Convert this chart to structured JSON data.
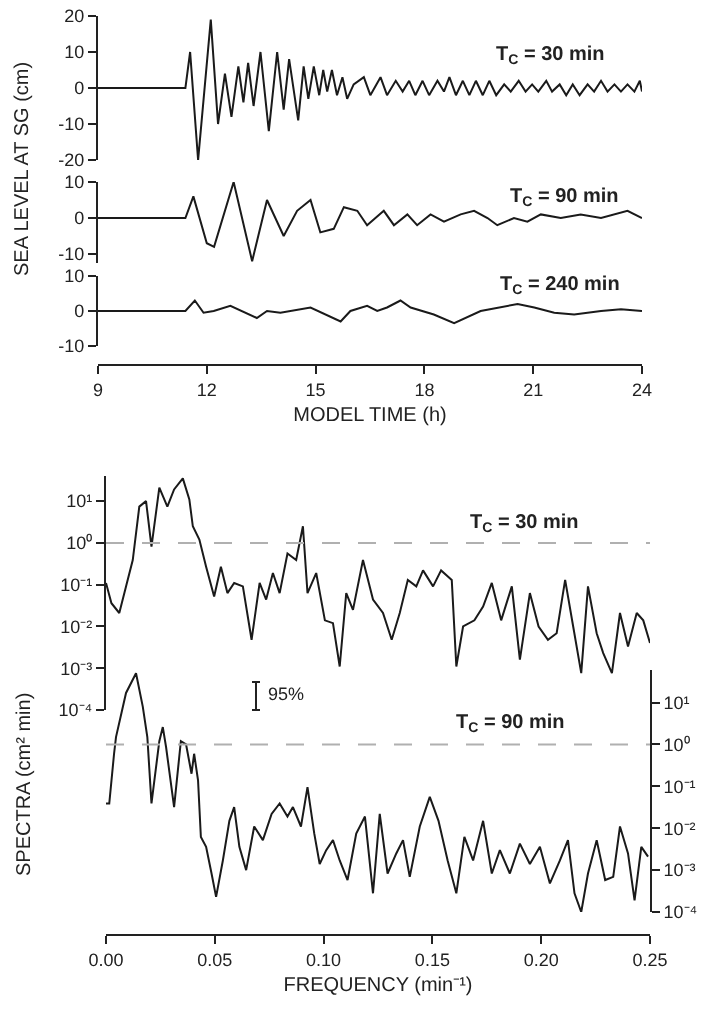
{
  "chart_data": [
    {
      "type": "line",
      "tick_labels": "y",
      "xlim": [
        9,
        24
      ],
      "ylim": [
        -20,
        20
      ],
      "yticks": [
        -20,
        -10,
        0,
        10,
        20
      ],
      "annotations": [
        "T$_{C}$ = 30 min"
      ],
      "series": [
        {
          "color": "#1a1a1a",
          "x": [
            9,
            11.41,
            11.54,
            11.76,
            12.11,
            12.31,
            12.5,
            12.68,
            12.87,
            13.01,
            13.14,
            13.29,
            13.48,
            13.71,
            13.94,
            14.12,
            14.27,
            14.52,
            14.67,
            14.8,
            14.95,
            15.1,
            15.21,
            15.32,
            15.45,
            15.59,
            15.74,
            15.87,
            16.05,
            16.33,
            16.51,
            16.79,
            16.97,
            17.21,
            17.4,
            17.58,
            17.75,
            17.95,
            18.13,
            18.36,
            18.54,
            18.69,
            18.87,
            19.06,
            19.24,
            19.42,
            19.61,
            19.79,
            19.98,
            20.2,
            20.38,
            20.6,
            20.79,
            20.97,
            21.14,
            21.36,
            21.52,
            21.73,
            21.91,
            22.09,
            22.28,
            22.5,
            22.68,
            22.87,
            23.05,
            23.24,
            23.42,
            23.6,
            23.79,
            23.94,
            24
          ],
          "values": [
            0,
            0,
            10,
            -20,
            19,
            -10,
            4,
            -8,
            6,
            -4,
            7,
            -5,
            10,
            -12,
            10,
            -6,
            8,
            -9,
            6,
            -3,
            6,
            -2,
            5,
            -1,
            5,
            -2,
            3,
            -3,
            1,
            3,
            -2,
            3,
            -2,
            2,
            -1,
            2,
            -2,
            2,
            -2,
            2,
            -1,
            3,
            -2,
            2,
            -2,
            2,
            -2,
            2,
            -2,
            1,
            -1,
            2,
            -1,
            1,
            -1,
            2,
            -1,
            1,
            -2,
            1,
            -2,
            1,
            -1,
            2,
            -1,
            1,
            -1,
            1,
            -1,
            2,
            -1
          ]
        }
      ]
    },
    {
      "type": "line",
      "tick_labels": "y",
      "xlim": [
        9,
        24
      ],
      "ylim": [
        -12.5,
        10
      ],
      "yticks": [
        -10,
        0,
        10
      ],
      "ylabel": "SEA LEVEL AT SG (cm)",
      "annotations": [
        "T$_{C}$ = 90 min"
      ],
      "series": [
        {
          "color": "#1a1a1a",
          "x": [
            9,
            11.41,
            11.63,
            12.0,
            12.2,
            12.74,
            13.25,
            13.66,
            14.12,
            14.49,
            14.86,
            15.13,
            15.5,
            15.78,
            16.15,
            16.42,
            16.88,
            17.16,
            17.53,
            17.8,
            18.17,
            18.54,
            19.0,
            19.37,
            19.74,
            20.01,
            20.47,
            20.84,
            21.21,
            21.76,
            22.31,
            22.87,
            23.6,
            24
          ],
          "values": [
            0,
            0,
            6,
            -7,
            -8,
            10,
            -12,
            5,
            -5,
            2,
            5,
            -4,
            -3,
            3,
            2,
            -2,
            2,
            -2,
            1,
            -2,
            1,
            -1,
            1,
            2,
            0,
            -2,
            0,
            -1,
            1,
            0,
            1,
            0,
            2,
            0
          ]
        }
      ]
    },
    {
      "type": "line",
      "xlim": [
        9,
        24
      ],
      "xticks": [
        9,
        12,
        15,
        18,
        21,
        24
      ],
      "xlabel": "MODEL TIME (h)",
      "ylim": [
        -10,
        10
      ],
      "yticks": [
        -10,
        0,
        10
      ],
      "annotations": [
        "T$_{C}$ = 240 min"
      ],
      "series": [
        {
          "color": "#1a1a1a",
          "x": [
            9,
            11.41,
            11.67,
            11.91,
            12.19,
            12.65,
            13.38,
            13.66,
            14.03,
            14.86,
            15.69,
            15.96,
            16.42,
            16.7,
            16.97,
            17.34,
            17.62,
            18.26,
            18.82,
            19.55,
            20.57,
            21.03,
            21.58,
            22.13,
            22.87,
            23.42,
            24
          ],
          "values": [
            0,
            0,
            3,
            -0.5,
            0,
            1.5,
            -2,
            0,
            -0.5,
            1,
            -3,
            0,
            1.5,
            0,
            1,
            3,
            1,
            -1,
            -3.5,
            0,
            2,
            1,
            -0.5,
            -1,
            0,
            0.5,
            0
          ]
        }
      ]
    },
    {
      "type": "line",
      "log": true,
      "tick_labels": "y",
      "xlim": [
        0,
        0.25
      ],
      "ylim": [
        0.0001,
        40
      ],
      "yticks": [
        {
          "value": 0.0001,
          "label": "10⁻⁴"
        },
        {
          "value": 0.001,
          "label": "10⁻³"
        },
        {
          "value": 0.01,
          "label": "10⁻²"
        },
        {
          "value": 0.1,
          "label": "10⁻¹"
        },
        {
          "value": 1,
          "label": "10⁰"
        },
        {
          "value": 10,
          "label": "10¹"
        }
      ],
      "ylabel": "SPECTRA (cm² min)",
      "annotations": [
        "T$_{C}$ = 30 min",
        "95%"
      ],
      "ref_lines": [
        {
          "axis": "y",
          "value": 1,
          "color": "#b0b0b0",
          "line_style": "dashed"
        }
      ],
      "series": [
        {
          "color": "#1a1a1a",
          "x": [
            0,
            0.0025,
            0.0061,
            0.0092,
            0.0123,
            0.0153,
            0.0184,
            0.0209,
            0.0245,
            0.0282,
            0.0313,
            0.0353,
            0.0383,
            0.0399,
            0.0429,
            0.046,
            0.0497,
            0.0528,
            0.0558,
            0.0589,
            0.0629,
            0.0669,
            0.0706,
            0.0736,
            0.0767,
            0.0798,
            0.0834,
            0.0874,
            0.0905,
            0.0926,
            0.0966,
            0.1006,
            0.1043,
            0.1074,
            0.1104,
            0.1135,
            0.1181,
            0.1227,
            0.1273,
            0.1313,
            0.135,
            0.1387,
            0.1426,
            0.1457,
            0.1503,
            0.154,
            0.1589,
            0.161,
            0.1641,
            0.1693,
            0.1733,
            0.1773,
            0.1816,
            0.1865,
            0.1902,
            0.1948,
            0.1988,
            0.2031,
            0.2071,
            0.211,
            0.2147,
            0.2184,
            0.2215,
            0.2255,
            0.2285,
            0.2325,
            0.2362,
            0.2399,
            0.2439,
            0.2469,
            0.25
          ],
          "values": [
            0.11,
            0.036,
            0.021,
            0.091,
            0.39,
            7.4,
            10,
            0.81,
            21,
            7.4,
            19,
            35,
            11,
            2.5,
            1.2,
            0.27,
            0.052,
            0.27,
            0.063,
            0.11,
            0.091,
            0.0048,
            0.11,
            0.044,
            0.19,
            0.063,
            0.56,
            0.39,
            2.5,
            0.063,
            0.19,
            0.014,
            0.012,
            0.0011,
            0.063,
            0.025,
            0.39,
            0.044,
            0.021,
            0.0048,
            0.021,
            0.13,
            0.091,
            0.22,
            0.091,
            0.22,
            0.13,
            0.0011,
            0.01,
            0.014,
            0.03,
            0.11,
            0.014,
            0.091,
            0.0016,
            0.063,
            0.01,
            0.0048,
            0.0069,
            0.13,
            0.01,
            0.00076,
            0.091,
            0.0069,
            0.0023,
            0.00076,
            0.021,
            0.0033,
            0.021,
            0.014,
            0.004
          ]
        }
      ]
    },
    {
      "type": "line",
      "log": "y2",
      "xlim": [
        0,
        0.25
      ],
      "xticks": [
        {
          "value": 0,
          "label": "0.00"
        },
        {
          "value": 0.05,
          "label": "0.05"
        },
        {
          "value": 0.1,
          "label": "0.10"
        },
        {
          "value": 0.15,
          "label": "0.15"
        },
        {
          "value": 0.2,
          "label": "0.20"
        },
        {
          "value": 0.25,
          "label": "0.25"
        }
      ],
      "xlabel": "FREQUENCY (min⁻¹)",
      "y2lim": [
        0.0001,
        60
      ],
      "y2ticks": [
        {
          "value": 0.0001,
          "label": "10⁻⁴"
        },
        {
          "value": 0.001,
          "label": "10⁻³"
        },
        {
          "value": 0.01,
          "label": "10⁻²"
        },
        {
          "value": 0.1,
          "label": "10⁻¹"
        },
        {
          "value": 1,
          "label": "10⁰"
        },
        {
          "value": 10,
          "label": "10¹"
        }
      ],
      "annotations": [
        "T$_{C}$ = 90 min"
      ],
      "ref_lines": [
        {
          "axis": "y2",
          "value": 1,
          "color": "#b0b0b0",
          "line_style": "dashed"
        }
      ],
      "series": [
        {
          "color": "#1a1a1a",
          "axis": "y2",
          "x": [
            0,
            0.0015,
            0.0037,
            0.0046,
            0.0092,
            0.0138,
            0.0169,
            0.019,
            0.0209,
            0.0245,
            0.0261,
            0.0276,
            0.0313,
            0.0344,
            0.0368,
            0.0393,
            0.0405,
            0.0423,
            0.0436,
            0.046,
            0.0485,
            0.0506,
            0.0537,
            0.0567,
            0.0589,
            0.0613,
            0.0644,
            0.0681,
            0.0721,
            0.0761,
            0.0798,
            0.0834,
            0.0859,
            0.0896,
            0.0926,
            0.0957,
            0.0982,
            0.1012,
            0.1043,
            0.1074,
            0.111,
            0.115,
            0.119,
            0.1227,
            0.1258,
            0.1294,
            0.1334,
            0.1365,
            0.1396,
            0.1442,
            0.1488,
            0.1528,
            0.157,
            0.161,
            0.1647,
            0.1687,
            0.1733,
            0.1773,
            0.181,
            0.1856,
            0.1902,
            0.1948,
            0.1994,
            0.204,
            0.2086,
            0.2123,
            0.2153,
            0.2184,
            0.2215,
            0.2255,
            0.2294,
            0.2331,
            0.2362,
            0.2399,
            0.2429,
            0.246,
            0.2491
          ],
          "values": [
            0.039,
            0.039,
            0.6,
            1.5,
            17,
            50,
            8,
            1.5,
            0.039,
            1.2,
            2.6,
            0.87,
            0.032,
            1.2,
            1.0,
            0.2,
            0.6,
            0.14,
            0.0062,
            0.0036,
            0.00083,
            0.00023,
            0.0017,
            0.015,
            0.032,
            0.0036,
            0.001,
            0.011,
            0.0052,
            0.022,
            0.039,
            0.019,
            0.032,
            0.011,
            0.096,
            0.0075,
            0.0014,
            0.003,
            0.0052,
            0.0017,
            0.00058,
            0.0075,
            0.019,
            0.00028,
            0.022,
            0.00083,
            0.0025,
            0.0052,
            0.00069,
            0.011,
            0.056,
            0.015,
            0.0017,
            0.00028,
            0.0062,
            0.0017,
            0.015,
            0.00083,
            0.003,
            0.00083,
            0.0043,
            0.0014,
            0.0036,
            0.00048,
            0.0017,
            0.0052,
            0.00028,
            0.0001,
            0.00083,
            0.0052,
            0.00058,
            0.00069,
            0.011,
            0.0025,
            0.00019,
            0.0036,
            0.0021
          ]
        }
      ]
    }
  ]
}
